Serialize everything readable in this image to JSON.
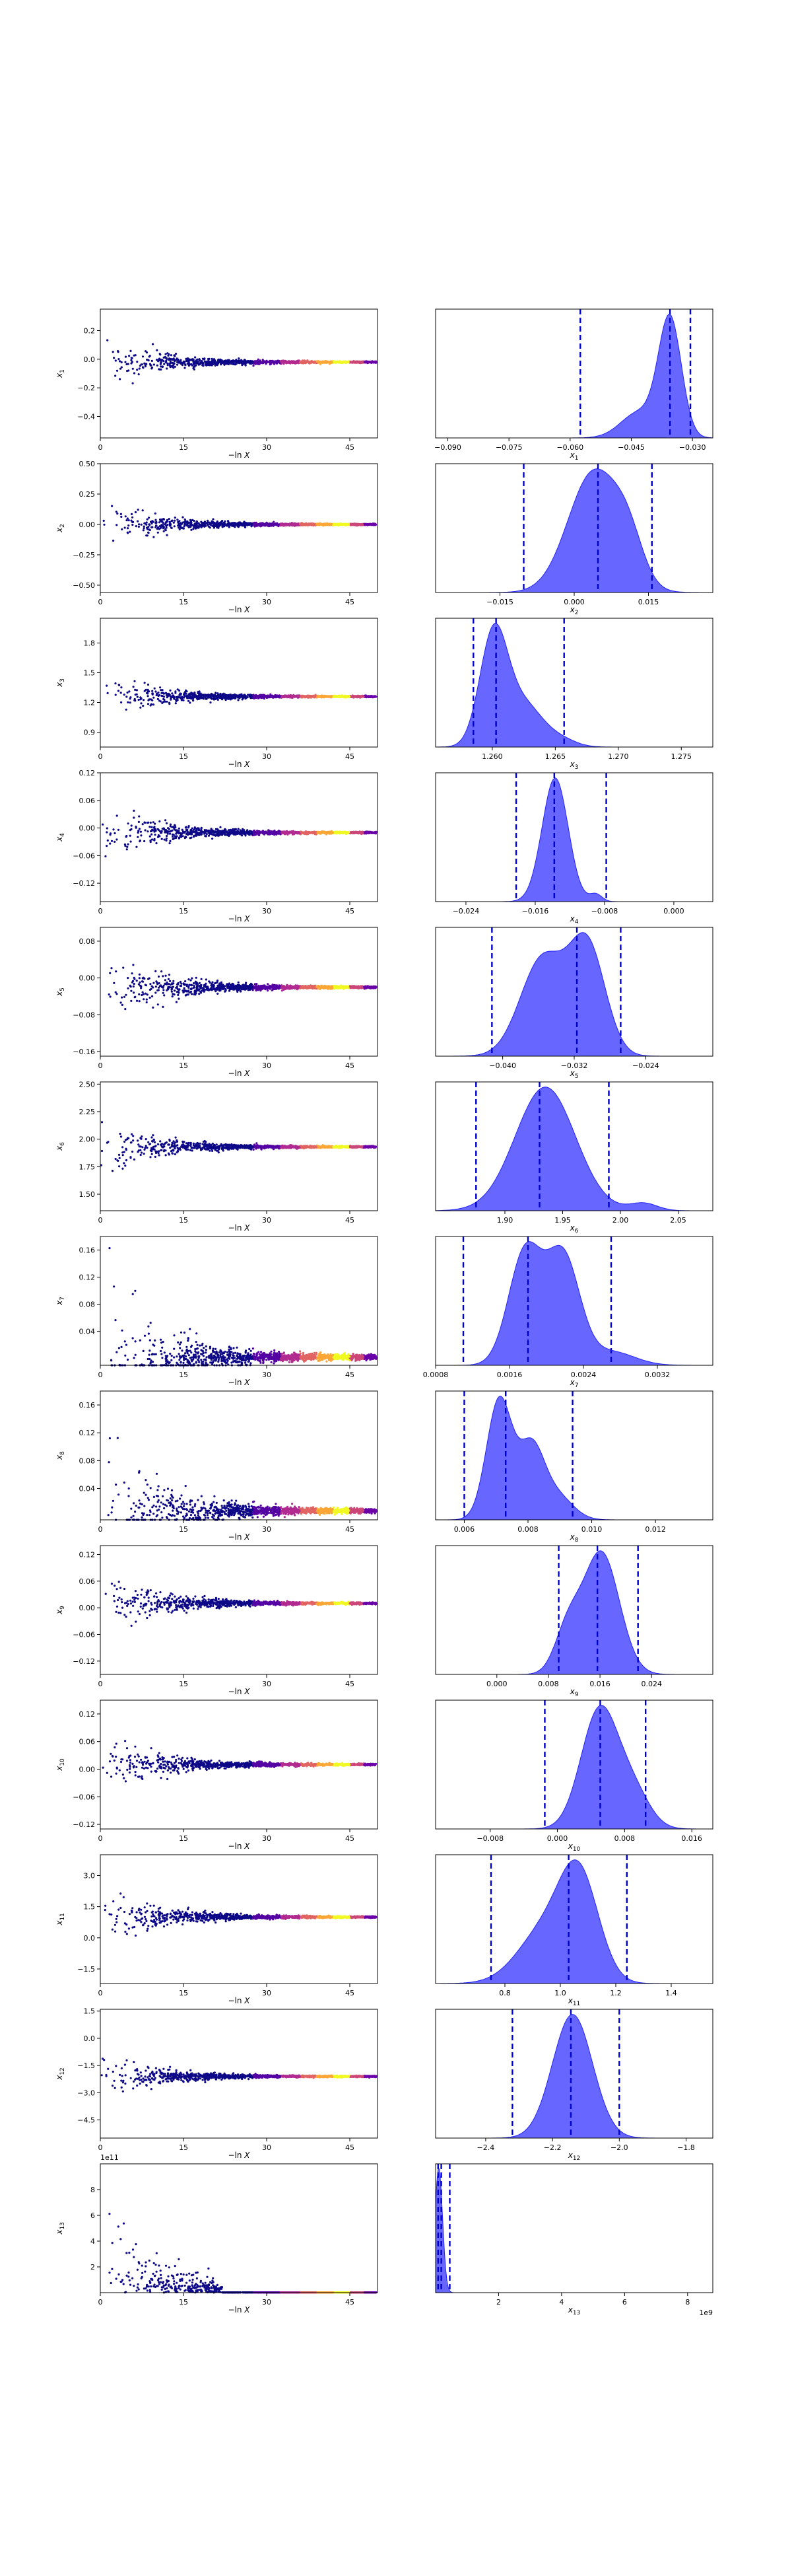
{
  "chart_data": [
    {
      "type": "scatter",
      "param": "x_1",
      "ylabel": "x_1",
      "xlabel": "−ln X",
      "xlim": [
        0,
        50
      ],
      "xticks": [
        0,
        15,
        30,
        45
      ],
      "ylim": [
        -0.55,
        0.35
      ],
      "yticks": [
        -0.4,
        -0.2,
        0.0,
        0.2
      ],
      "ytick_labels": [
        "−0.4",
        "−0.2",
        "0.0",
        "0.2"
      ],
      "center": -0.02,
      "spread": 0.22,
      "hist": {
        "type": "area",
        "xlabel": "x_1",
        "xlim": [
          -0.093,
          -0.025
        ],
        "xticks": [
          -0.09,
          -0.075,
          -0.06,
          -0.045,
          -0.03
        ],
        "xtick_labels": [
          "−0.090",
          "−0.075",
          "−0.060",
          "−0.045",
          "−0.030"
        ],
        "lines": [
          -0.0575,
          -0.0355,
          -0.0305
        ],
        "peaks": [
          {
            "mu": -0.0355,
            "sigma": 0.0028,
            "amp": 1.0
          },
          {
            "mu": -0.043,
            "sigma": 0.0045,
            "amp": 0.22
          }
        ]
      }
    },
    {
      "type": "scatter",
      "param": "x_2",
      "ylabel": "x_2",
      "xlabel": "−ln X",
      "xlim": [
        0,
        50
      ],
      "xticks": [
        0,
        15,
        30,
        45
      ],
      "ylim": [
        -0.56,
        0.5
      ],
      "yticks": [
        -0.5,
        -0.25,
        0.0,
        0.25,
        0.5
      ],
      "ytick_labels": [
        "−0.50",
        "−0.25",
        "0.00",
        "0.25",
        "0.50"
      ],
      "center": 0.0,
      "spread": 0.24,
      "hist": {
        "type": "area",
        "xlabel": "x_2",
        "xlim": [
          -0.028,
          0.028
        ],
        "xticks": [
          -0.015,
          0.0,
          0.015
        ],
        "xtick_labels": [
          "−0.015",
          "0.000",
          "0.015"
        ],
        "lines": [
          -0.0102,
          0.0048,
          0.0157
        ],
        "peaks": [
          {
            "mu": 0.004,
            "sigma": 0.0052,
            "amp": 1.0
          },
          {
            "mu": 0.011,
            "sigma": 0.003,
            "amp": 0.3
          }
        ]
      }
    },
    {
      "type": "scatter",
      "param": "x_3",
      "ylabel": "x_3",
      "xlabel": "−ln X",
      "xlim": [
        0,
        50
      ],
      "xticks": [
        0,
        15,
        30,
        45
      ],
      "ylim": [
        0.75,
        2.05
      ],
      "yticks": [
        0.9,
        1.2,
        1.5,
        1.8
      ],
      "ytick_labels": [
        "0.9",
        "1.2",
        "1.5",
        "1.8"
      ],
      "center": 1.26,
      "spread": 0.3,
      "hist": {
        "type": "area",
        "xlabel": "x_3",
        "xlim": [
          1.2555,
          1.2775
        ],
        "xticks": [
          1.26,
          1.265,
          1.27,
          1.275
        ],
        "xtick_labels": [
          "1.260",
          "1.265",
          "1.270",
          "1.275"
        ],
        "lines": [
          1.2585,
          1.2603,
          1.2657
        ],
        "peaks": [
          {
            "mu": 1.2601,
            "sigma": 0.0011,
            "amp": 1.0
          },
          {
            "mu": 1.2625,
            "sigma": 0.0015,
            "amp": 0.38
          },
          {
            "mu": 1.2655,
            "sigma": 0.0012,
            "amp": 0.06
          }
        ]
      }
    },
    {
      "type": "scatter",
      "param": "x_4",
      "ylabel": "x_4",
      "xlabel": "−ln X",
      "xlim": [
        0,
        50
      ],
      "xticks": [
        0,
        15,
        30,
        45
      ],
      "ylim": [
        -0.16,
        0.12
      ],
      "yticks": [
        -0.12,
        -0.06,
        0.0,
        0.06,
        0.12
      ],
      "ytick_labels": [
        "−0.12",
        "−0.06",
        "0.00",
        "0.06",
        "0.12"
      ],
      "center": -0.01,
      "spread": 0.08,
      "hist": {
        "type": "area",
        "xlabel": "x_4",
        "xlim": [
          -0.0275,
          0.0045
        ],
        "xticks": [
          -0.024,
          -0.016,
          -0.008,
          0.0
        ],
        "xtick_labels": [
          "−0.024",
          "−0.016",
          "−0.008",
          "0.000"
        ],
        "lines": [
          -0.0182,
          -0.0138,
          -0.0078
        ],
        "peaks": [
          {
            "mu": -0.0137,
            "sigma": 0.0015,
            "amp": 1.0
          },
          {
            "mu": -0.009,
            "sigma": 0.0007,
            "amp": 0.06
          }
        ]
      }
    },
    {
      "type": "scatter",
      "param": "x_5",
      "ylabel": "x_5",
      "xlabel": "−ln X",
      "xlim": [
        0,
        50
      ],
      "xticks": [
        0,
        15,
        30,
        45
      ],
      "ylim": [
        -0.17,
        0.11
      ],
      "yticks": [
        -0.16,
        -0.08,
        0.0,
        0.08
      ],
      "ytick_labels": [
        "−0.16",
        "−0.08",
        "0.00",
        "0.08"
      ],
      "center": -0.02,
      "spread": 0.1,
      "hist": {
        "type": "area",
        "xlabel": "x_5",
        "xlim": [
          -0.0475,
          -0.0165
        ],
        "xticks": [
          -0.04,
          -0.032,
          -0.024
        ],
        "xtick_labels": [
          "−0.040",
          "−0.032",
          "−0.024"
        ],
        "lines": [
          -0.0412,
          -0.0317,
          -0.0268
        ],
        "peaks": [
          {
            "mu": -0.0355,
            "sigma": 0.0025,
            "amp": 0.82
          },
          {
            "mu": -0.0305,
            "sigma": 0.002,
            "amp": 0.9
          }
        ]
      }
    },
    {
      "type": "scatter",
      "param": "x_6",
      "ylabel": "x_6",
      "xlabel": "−ln X",
      "xlim": [
        0,
        50
      ],
      "xticks": [
        0,
        15,
        30,
        45
      ],
      "ylim": [
        1.35,
        2.52
      ],
      "yticks": [
        1.5,
        1.75,
        2.0,
        2.25,
        2.5
      ],
      "ytick_labels": [
        "1.50",
        "1.75",
        "2.00",
        "2.25",
        "2.50"
      ],
      "center": 1.93,
      "spread": 0.3,
      "hist": {
        "type": "area",
        "xlabel": "x_6",
        "xlim": [
          1.84,
          2.08
        ],
        "xticks": [
          1.9,
          1.95,
          2.0,
          2.05
        ],
        "xtick_labels": [
          "1.90",
          "1.95",
          "2.00",
          "2.05"
        ],
        "lines": [
          1.875,
          1.93,
          1.99
        ],
        "peaks": [
          {
            "mu": 1.935,
            "sigma": 0.026,
            "amp": 1.0
          },
          {
            "mu": 2.02,
            "sigma": 0.012,
            "amp": 0.06
          }
        ]
      }
    },
    {
      "type": "scatter",
      "param": "x_7",
      "ylabel": "x_7",
      "xlabel": "−ln X",
      "xlim": [
        0,
        50
      ],
      "xticks": [
        0,
        15,
        30,
        45
      ],
      "ylim": [
        -0.01,
        0.18
      ],
      "yticks": [
        0.04,
        0.08,
        0.12,
        0.16
      ],
      "ytick_labels": [
        "0.04",
        "0.08",
        "0.12",
        "0.16"
      ],
      "center": 0.002,
      "spread": 0.15,
      "hist": {
        "type": "area",
        "xlabel": "x_7",
        "xlim": [
          0.0008,
          0.0038
        ],
        "xticks": [
          0.0008,
          0.0016,
          0.0024,
          0.0032
        ],
        "xtick_labels": [
          "0.0008",
          "0.0016",
          "0.0024",
          "0.0032"
        ],
        "lines": [
          0.0011,
          0.0018,
          0.0027
        ],
        "peaks": [
          {
            "mu": 0.00177,
            "sigma": 0.00018,
            "amp": 1.0
          },
          {
            "mu": 0.00218,
            "sigma": 0.00018,
            "amp": 0.95
          },
          {
            "mu": 0.0027,
            "sigma": 0.00025,
            "amp": 0.12
          }
        ]
      }
    },
    {
      "type": "scatter",
      "param": "x_8",
      "ylabel": "x_8",
      "xlabel": "−ln X",
      "xlim": [
        0,
        50
      ],
      "xticks": [
        0,
        15,
        30,
        45
      ],
      "ylim": [
        -0.005,
        0.18
      ],
      "yticks": [
        0.04,
        0.08,
        0.12,
        0.16
      ],
      "ytick_labels": [
        "0.04",
        "0.08",
        "0.12",
        "0.16"
      ],
      "center": 0.008,
      "spread": 0.14,
      "hist": {
        "type": "area",
        "xlabel": "x_8",
        "xlim": [
          0.0051,
          0.0138
        ],
        "xticks": [
          0.006,
          0.008,
          0.01,
          0.012
        ],
        "xtick_labels": [
          "0.006",
          "0.008",
          "0.010",
          "0.012"
        ],
        "lines": [
          0.006,
          0.0073,
          0.0094
        ],
        "peaks": [
          {
            "mu": 0.0071,
            "sigma": 0.0004,
            "amp": 1.0
          },
          {
            "mu": 0.0081,
            "sigma": 0.0004,
            "amp": 0.58
          },
          {
            "mu": 0.0089,
            "sigma": 0.0005,
            "amp": 0.2
          }
        ]
      }
    },
    {
      "type": "scatter",
      "param": "x_9",
      "ylabel": "x_9",
      "xlabel": "−ln X",
      "xlim": [
        0,
        50
      ],
      "xticks": [
        0,
        15,
        30,
        45
      ],
      "ylim": [
        -0.15,
        0.14
      ],
      "yticks": [
        -0.12,
        -0.06,
        0.0,
        0.06,
        0.12
      ],
      "ytick_labels": [
        "−0.12",
        "−0.06",
        "0.00",
        "0.06",
        "0.12"
      ],
      "center": 0.01,
      "spread": 0.09,
      "hist": {
        "type": "area",
        "xlabel": "x_9",
        "xlim": [
          -0.0095,
          0.0335
        ],
        "xticks": [
          0.0,
          0.008,
          0.016,
          0.024
        ],
        "xtick_labels": [
          "0.000",
          "0.008",
          "0.016",
          "0.024"
        ],
        "lines": [
          0.0096,
          0.0156,
          0.0219
        ],
        "peaks": [
          {
            "mu": 0.0162,
            "sigma": 0.0028,
            "amp": 1.0
          },
          {
            "mu": 0.011,
            "sigma": 0.002,
            "amp": 0.35
          }
        ]
      }
    },
    {
      "type": "scatter",
      "param": "x_10",
      "ylabel": "x_10",
      "xlabel": "−ln X",
      "xlim": [
        0,
        50
      ],
      "xticks": [
        0,
        15,
        30,
        45
      ],
      "ylim": [
        -0.13,
        0.15
      ],
      "yticks": [
        -0.12,
        -0.06,
        0.0,
        0.06,
        0.12
      ],
      "ytick_labels": [
        "−0.12",
        "−0.06",
        "0.00",
        "0.06",
        "0.12"
      ],
      "center": 0.01,
      "spread": 0.08,
      "hist": {
        "type": "area",
        "xlabel": "x_10",
        "xlim": [
          -0.0145,
          0.0185
        ],
        "xticks": [
          -0.008,
          0.0,
          0.008,
          0.016
        ],
        "xtick_labels": [
          "−0.008",
          "0.000",
          "0.008",
          "0.016"
        ],
        "lines": [
          -0.0015,
          0.0051,
          0.0105
        ],
        "peaks": [
          {
            "mu": 0.005,
            "sigma": 0.0022,
            "amp": 1.0
          },
          {
            "mu": 0.009,
            "sigma": 0.002,
            "amp": 0.3
          }
        ]
      }
    },
    {
      "type": "scatter",
      "param": "x_11",
      "ylabel": "x_11",
      "xlabel": "−ln X",
      "xlim": [
        0,
        50
      ],
      "xticks": [
        0,
        15,
        30,
        45
      ],
      "ylim": [
        -2.2,
        4.0
      ],
      "yticks": [
        -1.5,
        0.0,
        1.5,
        3.0
      ],
      "ytick_labels": [
        "−1.5",
        "0.0",
        "1.5",
        "3.0"
      ],
      "center": 1.0,
      "spread": 1.7,
      "hist": {
        "type": "area",
        "xlabel": "x_11",
        "xlim": [
          0.55,
          1.55
        ],
        "xticks": [
          0.8,
          1.0,
          1.2,
          1.4
        ],
        "xtick_labels": [
          "0.8",
          "1.0",
          "1.2",
          "1.4"
        ],
        "lines": [
          0.75,
          1.03,
          1.24
        ],
        "peaks": [
          {
            "mu": 1.07,
            "sigma": 0.07,
            "amp": 0.95
          },
          {
            "mu": 0.95,
            "sigma": 0.1,
            "amp": 0.55
          }
        ]
      }
    },
    {
      "type": "scatter",
      "param": "x_12",
      "ylabel": "x_12",
      "xlabel": "−ln X",
      "xlim": [
        0,
        50
      ],
      "xticks": [
        0,
        15,
        30,
        45
      ],
      "ylim": [
        -5.5,
        1.6
      ],
      "yticks": [
        -4.5,
        -3.0,
        -1.5,
        0.0,
        1.5
      ],
      "ytick_labels": [
        "−4.5",
        "−3.0",
        "−1.5",
        "0.0",
        "1.5"
      ],
      "center": -2.1,
      "spread": 1.6,
      "hist": {
        "type": "area",
        "xlabel": "x_12",
        "xlim": [
          -2.55,
          -1.72
        ],
        "xticks": [
          -2.4,
          -2.2,
          -2.0,
          -1.8
        ],
        "xtick_labels": [
          "−2.4",
          "−2.2",
          "−2.0",
          "−1.8"
        ],
        "lines": [
          -2.32,
          -2.145,
          -2.0
        ],
        "peaks": [
          {
            "mu": -2.14,
            "sigma": 0.06,
            "amp": 1.0
          }
        ]
      }
    },
    {
      "type": "scatter",
      "param": "x_13",
      "ylabel": "x_13",
      "xlabel": "−ln X",
      "xlim": [
        0,
        50
      ],
      "xticks": [
        0,
        15,
        30,
        45
      ],
      "ylim": [
        0,
        10
      ],
      "yticks": [
        2,
        4,
        6,
        8
      ],
      "ytick_labels": [
        "2",
        "4",
        "6",
        "8"
      ],
      "offset_text": "1e11",
      "center": 0.0,
      "spread": 9.0,
      "hist": {
        "type": "area",
        "xlabel": "x_13",
        "xlim": [
          0.0,
          8.8
        ],
        "xticks": [
          2,
          4,
          6,
          8
        ],
        "xtick_labels": [
          "2",
          "4",
          "6",
          "8"
        ],
        "offset_text": "1e9",
        "lines": [
          0.08,
          0.18,
          0.45
        ],
        "peaks": [
          {
            "mu": 0.1,
            "sigma": 0.12,
            "amp": 1.0
          }
        ]
      }
    }
  ]
}
